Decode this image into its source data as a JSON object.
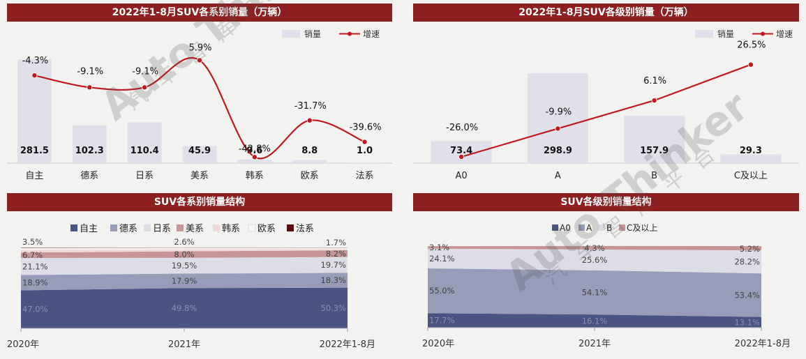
{
  "colors": {
    "banner": "#8e1f20",
    "bar": "#dfe0ea",
    "line": "#c0181e",
    "zizhu": "#4a5482",
    "dexi": "#979cb9",
    "rixi": "#dcdde6",
    "meixi": "#c79595",
    "hanxi": "#f2dada",
    "ouxi": "#f7f4f4",
    "faxi": "#5e0b0f",
    "a0": "#4a5482",
    "a": "#979cb9",
    "b": "#dcdde6",
    "c": "#c79595"
  },
  "charts": [
    {
      "id": "series-sales",
      "banner": "2022年1-8月SUV各系别销量（万辆）",
      "legend": {
        "bar": "销量",
        "line": "增速"
      },
      "chart_data": {
        "type": "bar",
        "categories": [
          "自主",
          "德系",
          "日系",
          "美系",
          "韩系",
          "欧系",
          "法系"
        ],
        "series": [
          {
            "name": "销量",
            "type": "bar",
            "values": [
              281.5,
              102.3,
              110.4,
              45.9,
              9.6,
              8.8,
              1.0
            ],
            "labels": [
              "281.5",
              "102.3",
              "110.4",
              "45.9",
              "9.6",
              "8.8",
              "1.0"
            ]
          },
          {
            "name": "增速",
            "type": "line",
            "values": [
              -4.3,
              -9.1,
              -9.1,
              5.9,
              -42.8,
              -31.7,
              -39.6
            ],
            "labels": [
              "-4.3%",
              "-9.1%",
              "-9.1%",
              "5.9%",
              "-42.8%",
              "-31.7%",
              "-39.6%"
            ]
          }
        ]
      }
    },
    {
      "id": "level-sales",
      "banner": "2022年1-8月SUV各级别销量（万辆）",
      "legend": {
        "bar": "销量",
        "line": "增速"
      },
      "chart_data": {
        "type": "bar",
        "categories": [
          "A0",
          "A",
          "B",
          "C及以上"
        ],
        "series": [
          {
            "name": "销量",
            "type": "bar",
            "values": [
              73.4,
              298.9,
              157.9,
              29.3
            ],
            "labels": [
              "73.4",
              "298.9",
              "157.9",
              "29.3"
            ]
          },
          {
            "name": "增速",
            "type": "line",
            "values": [
              -26.0,
              -9.9,
              6.1,
              26.5
            ],
            "labels": [
              "-26.0%",
              "-9.9%",
              "6.1%",
              "26.5%"
            ]
          }
        ]
      }
    },
    {
      "id": "series-structure",
      "banner": "SUV各系别销量结构",
      "chart_data": {
        "type": "area",
        "stacked": true,
        "x": [
          "2020年",
          "2021年",
          "2022年1-8月"
        ],
        "series": [
          {
            "name": "自主",
            "values": [
              47.0,
              49.8,
              50.3
            ],
            "labels": [
              "47.0%",
              "49.8%",
              "50.3%"
            ]
          },
          {
            "name": "德系",
            "values": [
              18.9,
              17.9,
              18.3
            ],
            "labels": [
              "18.9%",
              "17.9%",
              "18.3%"
            ]
          },
          {
            "name": "日系",
            "values": [
              21.1,
              19.5,
              19.7
            ],
            "labels": [
              "21.1%",
              "19.5%",
              "19.7%"
            ]
          },
          {
            "name": "美系",
            "values": [
              6.7,
              8.0,
              8.2
            ],
            "labels": [
              "6.7%",
              "8.0%",
              "8.2%"
            ]
          },
          {
            "name": "韩系",
            "values": [
              3.5,
              2.6,
              1.7
            ],
            "labels": [
              "3.5%",
              "2.6%",
              "1.7%"
            ]
          },
          {
            "name": "欧系",
            "values": [
              2.4,
              2.0,
              1.6
            ],
            "labels": []
          },
          {
            "name": "法系",
            "values": [
              0.4,
              0.2,
              0.2
            ],
            "labels": []
          }
        ],
        "ylim": [
          0,
          100
        ]
      }
    },
    {
      "id": "level-structure",
      "banner": "SUV各级别销量结构",
      "chart_data": {
        "type": "area",
        "stacked": true,
        "x": [
          "2020年",
          "2021年",
          "2022年1-8月"
        ],
        "series": [
          {
            "name": "A0",
            "values": [
              17.7,
              16.1,
              13.1
            ],
            "labels": [
              "17.7%",
              "16.1%",
              "13.1%"
            ]
          },
          {
            "name": "A",
            "values": [
              55.0,
              54.1,
              53.4
            ],
            "labels": [
              "55.0%",
              "54.1%",
              "53.4%"
            ]
          },
          {
            "name": "B",
            "values": [
              24.1,
              25.6,
              28.2
            ],
            "labels": [
              "24.1%",
              "25.6%",
              "28.2%"
            ]
          },
          {
            "name": "C及以上",
            "values": [
              3.1,
              4.3,
              5.2
            ],
            "labels": [
              "3.1%",
              "4.3%",
              "5.2%"
            ]
          }
        ],
        "ylim": [
          0,
          100
        ]
      }
    }
  ],
  "watermark": {
    "text": "Auto Thinker",
    "sub": "汽车智库平台"
  }
}
